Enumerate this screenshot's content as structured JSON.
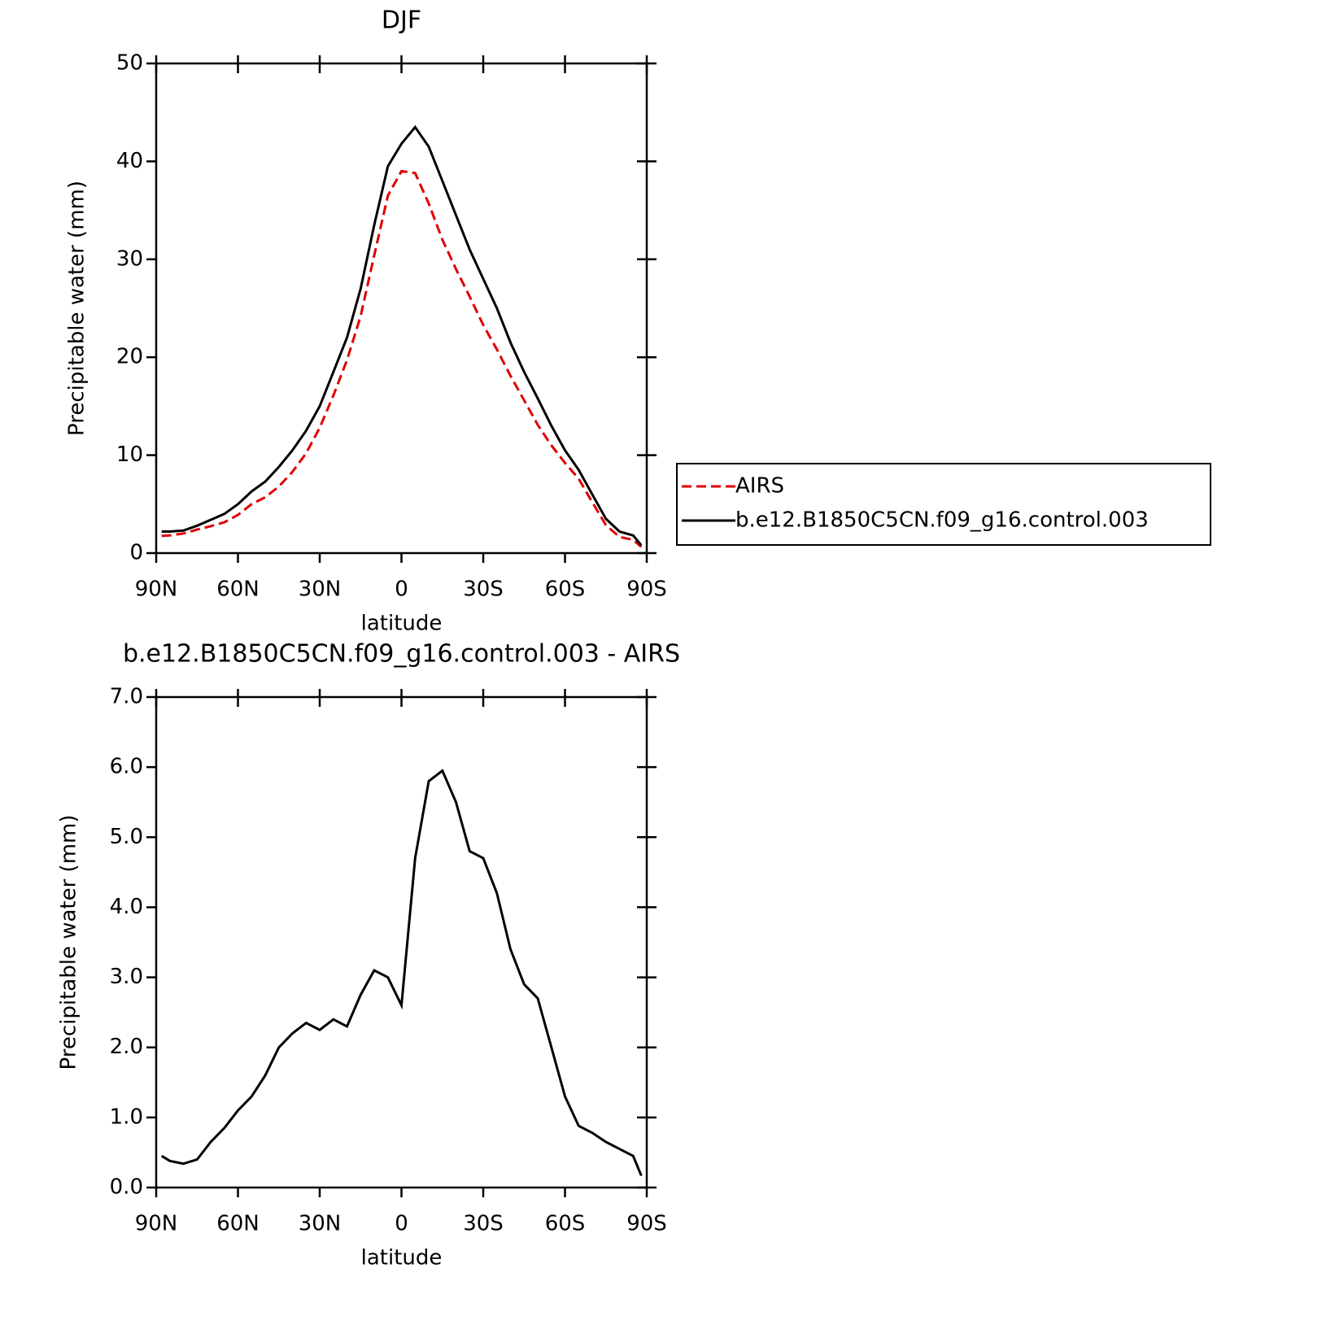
{
  "chart_data": [
    {
      "type": "line",
      "title": "DJF",
      "xlabel": "latitude",
      "ylabel": "Precipitable water (mm)",
      "x": [
        88,
        85,
        80,
        75,
        70,
        65,
        60,
        55,
        50,
        45,
        40,
        35,
        30,
        25,
        20,
        15,
        10,
        5,
        0,
        -5,
        -10,
        -15,
        -20,
        -25,
        -30,
        -35,
        -40,
        -45,
        -50,
        -55,
        -60,
        -65,
        -70,
        -75,
        -80,
        -85,
        -88
      ],
      "series": [
        {
          "name": "AIRS",
          "color": "#e00000",
          "dash": true,
          "values": [
            1.75,
            1.8,
            2.0,
            2.4,
            2.75,
            3.15,
            3.9,
            5.0,
            5.7,
            6.8,
            8.3,
            10.2,
            12.8,
            16.1,
            19.7,
            24.2,
            30.4,
            36.5,
            39,
            38.8,
            35.7,
            32,
            29,
            26.2,
            23.3,
            20.8,
            18.1,
            15.6,
            13.1,
            11.0,
            9.2,
            7.6,
            5.2,
            2.85,
            1.65,
            1.35,
            0.63
          ]
        },
        {
          "name": "b.e12.B1850C5CN.f09_g16.control.003",
          "color": "#000000",
          "dash": false,
          "values": [
            2.2,
            2.2,
            2.3,
            2.8,
            3.4,
            4.0,
            5.0,
            6.3,
            7.3,
            8.8,
            10.5,
            12.5,
            15.0,
            18.5,
            22,
            27,
            33.5,
            39.5,
            41.8,
            43.5,
            41.5,
            38,
            34.5,
            31,
            28,
            25,
            21.5,
            18.5,
            15.8,
            13,
            10.5,
            8.5,
            6,
            3.5,
            2.2,
            1.8,
            0.8
          ]
        }
      ],
      "xlim": [
        90,
        -90
      ],
      "xticks": [
        {
          "value": 90,
          "label": "90N"
        },
        {
          "value": 60,
          "label": "60N"
        },
        {
          "value": 30,
          "label": "30N"
        },
        0,
        {
          "value": -30,
          "label": "30S"
        },
        {
          "value": -60,
          "label": "60S"
        },
        {
          "value": -90,
          "label": "90S"
        }
      ],
      "ylim": [
        0,
        50
      ],
      "yticks": [
        0,
        10,
        20,
        30,
        40,
        50
      ],
      "legend": "right"
    },
    {
      "type": "line",
      "title": "b.e12.B1850C5CN.f09_g16.control.003 - AIRS",
      "xlabel": "latitude",
      "ylabel": "Precipitable water (mm)",
      "x": [
        88,
        85,
        80,
        75,
        70,
        65,
        60,
        55,
        50,
        45,
        40,
        35,
        30,
        25,
        20,
        15,
        10,
        5,
        0,
        -5,
        -10,
        -15,
        -20,
        -25,
        -30,
        -35,
        -40,
        -45,
        -50,
        -55,
        -60,
        -65,
        -70,
        -75,
        -80,
        -85,
        -88
      ],
      "series": [
        {
          "color": "#000000",
          "dash": false,
          "values": [
            0.45,
            0.38,
            0.34,
            0.4,
            0.65,
            0.85,
            1.1,
            1.3,
            1.6,
            2.0,
            2.2,
            2.35,
            2.25,
            2.4,
            2.3,
            2.75,
            3.1,
            3.0,
            2.6,
            4.7,
            5.8,
            5.95,
            5.5,
            4.8,
            4.7,
            4.2,
            3.4,
            2.9,
            2.7,
            2.0,
            1.3,
            0.88,
            0.78,
            0.65,
            0.55,
            0.45,
            0.17
          ]
        }
      ],
      "xlim": [
        90,
        -90
      ],
      "xticks": [
        {
          "value": 90,
          "label": "90N"
        },
        {
          "value": 60,
          "label": "60N"
        },
        {
          "value": 30,
          "label": "30N"
        },
        0,
        {
          "value": -30,
          "label": "30S"
        },
        {
          "value": -60,
          "label": "60S"
        },
        {
          "value": -90,
          "label": "90S"
        }
      ],
      "ylim": [
        0,
        7
      ],
      "yticks": [
        {
          "value": 0,
          "label": "0.0"
        },
        {
          "value": 1,
          "label": "1.0"
        },
        {
          "value": 2,
          "label": "2.0"
        },
        {
          "value": 3,
          "label": "3.0"
        },
        {
          "value": 4,
          "label": "4.0"
        },
        {
          "value": 5,
          "label": "5.0"
        },
        {
          "value": 6,
          "label": "6.0"
        },
        {
          "value": 7,
          "label": "7.0"
        }
      ]
    }
  ]
}
